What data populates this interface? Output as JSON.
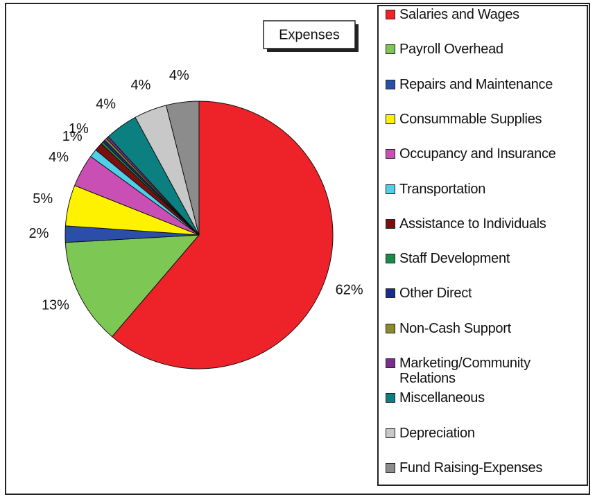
{
  "chart_data": {
    "type": "pie",
    "title": "Expenses",
    "categories": [
      "Salaries and Wages",
      "Payroll Overhead",
      "Repairs and Maintenance",
      "Consummable Supplies",
      "Occupancy and Insurance",
      "Transportation",
      "Assistance to Individuals",
      "Staff Development",
      "Other Direct",
      "Non-Cash Support",
      "Marketing/Community Relations",
      "Miscellaneous",
      "Depreciation",
      "Fund Raising-Expenses"
    ],
    "values": [
      62,
      13,
      2,
      5,
      4,
      1,
      1,
      0.3,
      0.3,
      0.3,
      0.3,
      4,
      4,
      4
    ],
    "value_labels": [
      "62%",
      "13%",
      "2%",
      "5%",
      "4%",
      "1%",
      "1%",
      null,
      null,
      null,
      null,
      "4%",
      "4%",
      "4%"
    ],
    "colors": [
      "#ee2229",
      "#7dc855",
      "#2b4fa8",
      "#fff200",
      "#c94fb5",
      "#4fd0e8",
      "#7a0f10",
      "#1a8a4a",
      "#1b2c8c",
      "#8a8a2a",
      "#7b2d8e",
      "#0c8080",
      "#c8c8c8",
      "#8c8c8c"
    ],
    "legend": "right"
  }
}
